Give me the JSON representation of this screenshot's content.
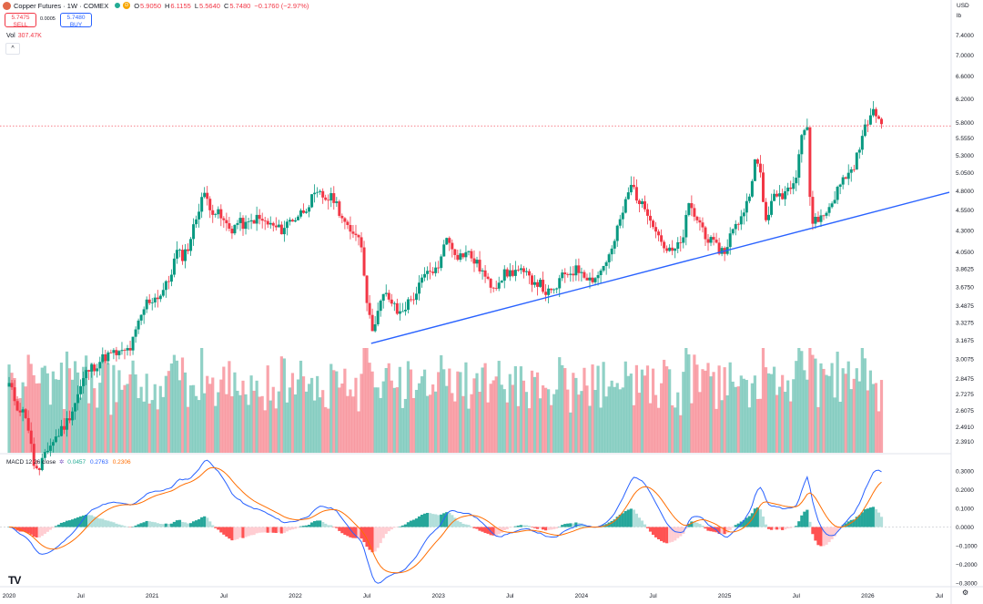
{
  "header": {
    "title": "Copper Futures · 1W · COMEX",
    "open_label": "O",
    "open": "5.9050",
    "high_label": "H",
    "high": "6.1155",
    "low_label": "L",
    "low": "5.5640",
    "close_label": "C",
    "close": "5.7480",
    "change": "−0.1760 (−2.97%)",
    "d_badge": "D"
  },
  "trade": {
    "sell_price": "5.7475",
    "sell_label": "SELL",
    "buy_price": "5.7480",
    "buy_label": "BUY",
    "spread": "0.0005"
  },
  "volume": {
    "label": "Vol",
    "value": "307.47K"
  },
  "collapse_glyph": "^",
  "macd": {
    "label": "MACD 12 26 close",
    "hist_value": "0.0457",
    "macd_value": "0.2763",
    "signal_value": "0.2306"
  },
  "axis_top": {
    "currency": "USD",
    "unit": "lb"
  },
  "logo_text": "TV",
  "settings_glyph": "⚙",
  "colors": {
    "up": "#089981",
    "down": "#f23645",
    "macd": "#2962ff",
    "signal": "#ff6d00",
    "trend": "#2962ff"
  },
  "chart_data": [
    {
      "type": "candlestick",
      "title": "Copper Futures · 1W · COMEX",
      "xlabel": "",
      "ylabel": "USD / lb",
      "x_ticks": [
        "2020",
        "Jul",
        "2021",
        "Jul",
        "2022",
        "Jul",
        "2023",
        "Jul",
        "2024",
        "Jul",
        "2025",
        "Jul",
        "2026",
        "Jul"
      ],
      "y_ticks": [
        "7.4000",
        "7.0000",
        "6.6000",
        "6.2000",
        "5.8000",
        "5.5550",
        "5.3000",
        "5.0500",
        "4.8000",
        "4.5500",
        "4.3000",
        "4.0500",
        "3.8625",
        "3.6750",
        "3.4875",
        "3.3275",
        "3.1675",
        "3.0075",
        "2.8475",
        "2.7275",
        "2.6075",
        "2.4910",
        "2.3910"
      ],
      "price_scale": "log",
      "current_price": 5.748,
      "price_series": [
        {
          "t": 2020.0,
          "c": 2.8
        },
        {
          "t": 2020.06,
          "c": 2.63
        },
        {
          "t": 2020.12,
          "c": 2.57
        },
        {
          "t": 2020.17,
          "c": 2.25
        },
        {
          "t": 2020.21,
          "c": 2.18
        },
        {
          "t": 2020.25,
          "c": 2.32
        },
        {
          "t": 2020.3,
          "c": 2.38
        },
        {
          "t": 2020.35,
          "c": 2.45
        },
        {
          "t": 2020.4,
          "c": 2.52
        },
        {
          "t": 2020.45,
          "c": 2.63
        },
        {
          "t": 2020.5,
          "c": 2.78
        },
        {
          "t": 2020.54,
          "c": 2.9
        },
        {
          "t": 2020.6,
          "c": 2.95
        },
        {
          "t": 2020.66,
          "c": 3.02
        },
        {
          "t": 2020.72,
          "c": 3.05
        },
        {
          "t": 2020.78,
          "c": 3.05
        },
        {
          "t": 2020.85,
          "c": 3.1
        },
        {
          "t": 2020.9,
          "c": 3.3
        },
        {
          "t": 2020.96,
          "c": 3.52
        },
        {
          "t": 2021.0,
          "c": 3.55
        },
        {
          "t": 2021.06,
          "c": 3.6
        },
        {
          "t": 2021.12,
          "c": 3.75
        },
        {
          "t": 2021.17,
          "c": 4.05
        },
        {
          "t": 2021.21,
          "c": 4.0
        },
        {
          "t": 2021.25,
          "c": 4.1
        },
        {
          "t": 2021.3,
          "c": 4.4
        },
        {
          "t": 2021.35,
          "c": 4.75
        },
        {
          "t": 2021.38,
          "c": 4.7
        },
        {
          "t": 2021.42,
          "c": 4.55
        },
        {
          "t": 2021.46,
          "c": 4.5
        },
        {
          "t": 2021.5,
          "c": 4.4
        },
        {
          "t": 2021.55,
          "c": 4.3
        },
        {
          "t": 2021.6,
          "c": 4.4
        },
        {
          "t": 2021.66,
          "c": 4.35
        },
        {
          "t": 2021.72,
          "c": 4.45
        },
        {
          "t": 2021.78,
          "c": 4.4
        },
        {
          "t": 2021.84,
          "c": 4.35
        },
        {
          "t": 2021.9,
          "c": 4.3
        },
        {
          "t": 2021.96,
          "c": 4.42
        },
        {
          "t": 2022.0,
          "c": 4.45
        },
        {
          "t": 2022.06,
          "c": 4.55
        },
        {
          "t": 2022.12,
          "c": 4.7
        },
        {
          "t": 2022.17,
          "c": 4.75
        },
        {
          "t": 2022.21,
          "c": 4.7
        },
        {
          "t": 2022.27,
          "c": 4.7
        },
        {
          "t": 2022.33,
          "c": 4.45
        },
        {
          "t": 2022.38,
          "c": 4.25
        },
        {
          "t": 2022.42,
          "c": 4.3
        },
        {
          "t": 2022.46,
          "c": 4.15
        },
        {
          "t": 2022.5,
          "c": 3.55
        },
        {
          "t": 2022.53,
          "c": 3.25
        },
        {
          "t": 2022.57,
          "c": 3.4
        },
        {
          "t": 2022.62,
          "c": 3.6
        },
        {
          "t": 2022.66,
          "c": 3.55
        },
        {
          "t": 2022.72,
          "c": 3.4
        },
        {
          "t": 2022.78,
          "c": 3.5
        },
        {
          "t": 2022.84,
          "c": 3.6
        },
        {
          "t": 2022.9,
          "c": 3.78
        },
        {
          "t": 2022.96,
          "c": 3.85
        },
        {
          "t": 2023.0,
          "c": 3.85
        },
        {
          "t": 2023.04,
          "c": 4.2
        },
        {
          "t": 2023.08,
          "c": 4.15
        },
        {
          "t": 2023.14,
          "c": 4.0
        },
        {
          "t": 2023.2,
          "c": 4.05
        },
        {
          "t": 2023.25,
          "c": 3.95
        },
        {
          "t": 2023.3,
          "c": 3.85
        },
        {
          "t": 2023.35,
          "c": 3.7
        },
        {
          "t": 2023.4,
          "c": 3.7
        },
        {
          "t": 2023.45,
          "c": 3.8
        },
        {
          "t": 2023.5,
          "c": 3.82
        },
        {
          "t": 2023.55,
          "c": 3.85
        },
        {
          "t": 2023.6,
          "c": 3.8
        },
        {
          "t": 2023.65,
          "c": 3.75
        },
        {
          "t": 2023.7,
          "c": 3.72
        },
        {
          "t": 2023.75,
          "c": 3.62
        },
        {
          "t": 2023.8,
          "c": 3.6
        },
        {
          "t": 2023.85,
          "c": 3.75
        },
        {
          "t": 2023.9,
          "c": 3.82
        },
        {
          "t": 2023.96,
          "c": 3.85
        },
        {
          "t": 2024.0,
          "c": 3.85
        },
        {
          "t": 2024.06,
          "c": 3.75
        },
        {
          "t": 2024.12,
          "c": 3.8
        },
        {
          "t": 2024.17,
          "c": 3.95
        },
        {
          "t": 2024.21,
          "c": 4.05
        },
        {
          "t": 2024.25,
          "c": 4.3
        },
        {
          "t": 2024.3,
          "c": 4.6
        },
        {
          "t": 2024.35,
          "c": 4.9
        },
        {
          "t": 2024.38,
          "c": 4.75
        },
        {
          "t": 2024.42,
          "c": 4.6
        },
        {
          "t": 2024.46,
          "c": 4.55
        },
        {
          "t": 2024.5,
          "c": 4.4
        },
        {
          "t": 2024.55,
          "c": 4.2
        },
        {
          "t": 2024.6,
          "c": 4.05
        },
        {
          "t": 2024.64,
          "c": 4.05
        },
        {
          "t": 2024.7,
          "c": 4.15
        },
        {
          "t": 2024.75,
          "c": 4.6
        },
        {
          "t": 2024.8,
          "c": 4.45
        },
        {
          "t": 2024.84,
          "c": 4.35
        },
        {
          "t": 2024.88,
          "c": 4.2
        },
        {
          "t": 2024.94,
          "c": 4.1
        },
        {
          "t": 2025.0,
          "c": 4.05
        },
        {
          "t": 2025.04,
          "c": 4.25
        },
        {
          "t": 2025.08,
          "c": 4.35
        },
        {
          "t": 2025.12,
          "c": 4.5
        },
        {
          "t": 2025.16,
          "c": 4.65
        },
        {
          "t": 2025.21,
          "c": 5.2
        },
        {
          "t": 2025.25,
          "c": 5.05
        },
        {
          "t": 2025.28,
          "c": 4.4
        },
        {
          "t": 2025.32,
          "c": 4.6
        },
        {
          "t": 2025.36,
          "c": 4.75
        },
        {
          "t": 2025.4,
          "c": 4.75
        },
        {
          "t": 2025.45,
          "c": 4.85
        },
        {
          "t": 2025.5,
          "c": 5.05
        },
        {
          "t": 2025.54,
          "c": 5.65
        },
        {
          "t": 2025.58,
          "c": 5.75
        },
        {
          "t": 2025.6,
          "c": 4.4
        },
        {
          "t": 2025.64,
          "c": 4.45
        },
        {
          "t": 2025.68,
          "c": 4.45
        },
        {
          "t": 2025.72,
          "c": 4.55
        },
        {
          "t": 2025.76,
          "c": 4.7
        },
        {
          "t": 2025.8,
          "c": 4.85
        },
        {
          "t": 2025.84,
          "c": 5.0
        },
        {
          "t": 2025.88,
          "c": 5.05
        },
        {
          "t": 2025.92,
          "c": 5.25
        },
        {
          "t": 2025.96,
          "c": 5.55
        },
        {
          "t": 2026.0,
          "c": 5.85
        },
        {
          "t": 2026.04,
          "c": 5.95
        },
        {
          "t": 2026.08,
          "c": 5.9
        },
        {
          "t": 2026.1,
          "c": 5.75
        }
      ],
      "trendline": [
        {
          "t": 2022.53,
          "p": 3.14
        },
        {
          "t": 2026.57,
          "p": 4.78
        }
      ],
      "volume_series_label": "Vol",
      "macd": {
        "title": "MACD 12 26 close",
        "fast": 12,
        "slow": 26,
        "y_ticks": [
          "0.3000",
          "0.2000",
          "0.1000",
          "0.0000",
          "−0.1000",
          "−0.2000",
          "−0.3000"
        ],
        "last": {
          "histogram": 0.0457,
          "macd": 0.2763,
          "signal": 0.2306
        }
      }
    }
  ]
}
